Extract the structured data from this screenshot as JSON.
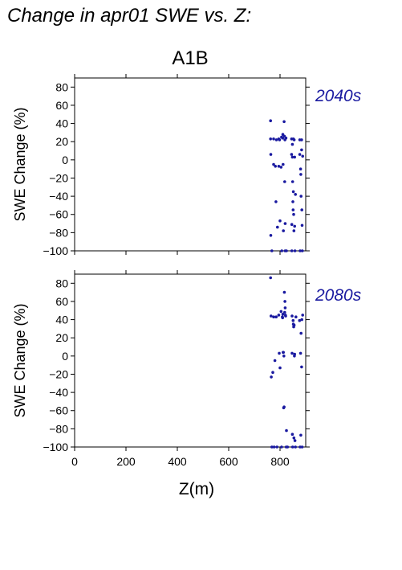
{
  "page": {
    "heading": "Change in apr01 SWE vs. Z:",
    "scenario": "A1B"
  },
  "colors": {
    "points": "#1a1aa0",
    "panel_label": "#1a1aa0",
    "axes": "#000000"
  },
  "chart_data": [
    {
      "type": "scatter",
      "panel_label": "2040s",
      "xlabel": "",
      "ylabel": "SWE Change (%)",
      "xlim": [
        0,
        900
      ],
      "ylim": [
        -100,
        90
      ],
      "xticks": [
        0,
        200,
        400,
        600,
        800
      ],
      "yticks": [
        -100,
        -80,
        -60,
        -40,
        -20,
        0,
        20,
        40,
        60,
        80
      ],
      "x_tick_labels_shown": false,
      "grid": false,
      "points": [
        [
          763,
          43
        ],
        [
          763,
          23
        ],
        [
          764,
          6
        ],
        [
          764,
          -83
        ],
        [
          768,
          -101
        ],
        [
          775,
          23
        ],
        [
          775,
          -5
        ],
        [
          782,
          -7
        ],
        [
          784,
          -46
        ],
        [
          786,
          22
        ],
        [
          790,
          -74
        ],
        [
          795,
          23
        ],
        [
          795,
          -7
        ],
        [
          798,
          22
        ],
        [
          800,
          -67
        ],
        [
          804,
          -8
        ],
        [
          806,
          25
        ],
        [
          807,
          -101
        ],
        [
          810,
          24
        ],
        [
          811,
          28
        ],
        [
          812,
          -5
        ],
        [
          813,
          -78
        ],
        [
          816,
          42
        ],
        [
          817,
          26
        ],
        [
          818,
          -24
        ],
        [
          819,
          22
        ],
        [
          820,
          -70
        ],
        [
          820,
          -100
        ],
        [
          823,
          24
        ],
        [
          825,
          -100
        ],
        [
          845,
          23
        ],
        [
          845,
          6
        ],
        [
          846,
          -71
        ],
        [
          846,
          -101
        ],
        [
          848,
          17
        ],
        [
          848,
          3
        ],
        [
          849,
          -24
        ],
        [
          850,
          -46
        ],
        [
          851,
          -55
        ],
        [
          852,
          23
        ],
        [
          852,
          -35
        ],
        [
          853,
          -60
        ],
        [
          854,
          -78
        ],
        [
          855,
          22
        ],
        [
          857,
          3
        ],
        [
          857,
          -73
        ],
        [
          858,
          -101
        ],
        [
          860,
          -38
        ],
        [
          877,
          22
        ],
        [
          877,
          6
        ],
        [
          878,
          -101
        ],
        [
          880,
          -10
        ],
        [
          881,
          -16
        ],
        [
          882,
          -40
        ],
        [
          884,
          11
        ],
        [
          884,
          22
        ],
        [
          885,
          -55
        ],
        [
          886,
          -72
        ],
        [
          887,
          -101
        ],
        [
          888,
          4
        ]
      ]
    },
    {
      "type": "scatter",
      "panel_label": "2080s",
      "xlabel": "Z(m)",
      "ylabel": "SWE Change (%)",
      "xlim": [
        0,
        900
      ],
      "ylim": [
        -100,
        90
      ],
      "xticks": [
        0,
        200,
        400,
        600,
        800
      ],
      "yticks": [
        -100,
        -80,
        -60,
        -40,
        -20,
        0,
        20,
        40,
        60,
        80
      ],
      "x_tick_labels_shown": true,
      "grid": false,
      "points": [
        [
          763,
          86
        ],
        [
          765,
          44
        ],
        [
          766,
          -23
        ],
        [
          768,
          -100
        ],
        [
          772,
          -18
        ],
        [
          775,
          43
        ],
        [
          777,
          -100
        ],
        [
          780,
          -5
        ],
        [
          785,
          43
        ],
        [
          788,
          -100
        ],
        [
          795,
          45
        ],
        [
          797,
          3
        ],
        [
          800,
          -13
        ],
        [
          804,
          49
        ],
        [
          806,
          -100
        ],
        [
          809,
          43
        ],
        [
          810,
          42
        ],
        [
          811,
          46
        ],
        [
          812,
          4
        ],
        [
          813,
          4
        ],
        [
          814,
          -57
        ],
        [
          815,
          0
        ],
        [
          816,
          -56
        ],
        [
          817,
          70
        ],
        [
          818,
          48
        ],
        [
          819,
          60
        ],
        [
          820,
          53
        ],
        [
          821,
          45
        ],
        [
          822,
          44
        ],
        [
          824,
          -100
        ],
        [
          825,
          -82
        ],
        [
          829,
          -100
        ],
        [
          847,
          44
        ],
        [
          847,
          3
        ],
        [
          848,
          -86
        ],
        [
          849,
          -100
        ],
        [
          851,
          39
        ],
        [
          852,
          35
        ],
        [
          853,
          32
        ],
        [
          854,
          -90
        ],
        [
          855,
          34
        ],
        [
          856,
          0
        ],
        [
          857,
          2
        ],
        [
          858,
          -93
        ],
        [
          860,
          -100
        ],
        [
          862,
          43
        ],
        [
          876,
          39
        ],
        [
          878,
          -100
        ],
        [
          880,
          3
        ],
        [
          881,
          -87
        ],
        [
          882,
          25
        ],
        [
          884,
          -12
        ],
        [
          885,
          40
        ],
        [
          886,
          -100
        ],
        [
          888,
          45
        ]
      ]
    }
  ]
}
